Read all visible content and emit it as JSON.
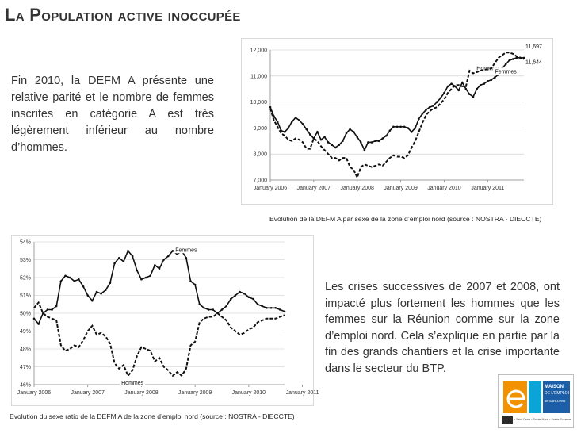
{
  "title": "La Population active inoccupée",
  "para1": "Fin 2010, la DEFM A présente une relative parité et le nombre de femmes inscrites en catégorie A est très légèrement inférieur au nombre d’hommes.",
  "para2": "Les crises successives de 2007 et 2008, ont impacté plus fortement les hommes que les femmes sur la Réunion comme sur la zone d’emploi nord. Cela s’explique en partie par la fin des grands chantiers et la crise importante dans le secteur du BTP.",
  "caption1": "Evolution de la DEFM A par sexe de la zone d’emploi nord (source : NOSTRA - DIECCTE)",
  "caption2": "Evolution du sexe ratio de la DEFM A de la zone d’emploi nord (source : NOSTRA - DIECCTE)",
  "logo": {
    "line1": "MAISON",
    "line2": "DE L'EMPLOI",
    "line3": "de Saint-Denis",
    "footer": "• Saint-Denis • Sainte-Marie • Sainte-Suzanne"
  },
  "chart_data": [
    {
      "type": "line",
      "ylim": [
        7000,
        12000
      ],
      "yticks": [
        "7,000",
        "8,000",
        "9,000",
        "10,000",
        "11,000",
        "12,000"
      ],
      "xtick_labels": [
        "January 2006",
        "January 2007",
        "January 2008",
        "January 2009",
        "January 2010",
        "January 2011"
      ],
      "x_start": "2006-01",
      "series": [
        {
          "name": "Hommes",
          "style": "solid",
          "end_label": "11,697",
          "values": [
            9800,
            9450,
            9250,
            8900,
            8850,
            9000,
            9250,
            9400,
            9300,
            9150,
            8950,
            8750,
            8600,
            8850,
            8550,
            8650,
            8450,
            8350,
            8250,
            8350,
            8500,
            8800,
            8950,
            8850,
            8650,
            8450,
            8150,
            8450,
            8450,
            8500,
            8500,
            8600,
            8700,
            8900,
            9050,
            9050,
            9050,
            9050,
            9000,
            8850,
            9000,
            9350,
            9550,
            9700,
            9800,
            9850,
            10000,
            10150,
            10350,
            10600,
            10700,
            10600,
            10450,
            10750,
            10500,
            10300,
            10200,
            10500,
            10650,
            10700,
            10800,
            10850,
            10950,
            11050,
            11300,
            11450,
            11600,
            11650,
            11700,
            11700,
            11697
          ]
        },
        {
          "name": "Femmes",
          "style": "dashed",
          "end_label": "11,644",
          "values": [
            9750,
            9300,
            9050,
            8800,
            8700,
            8550,
            8500,
            8600,
            8550,
            8450,
            8200,
            8200,
            8600,
            8500,
            8300,
            8150,
            8000,
            7850,
            7850,
            7750,
            7850,
            7850,
            7500,
            7400,
            7100,
            7500,
            7600,
            7550,
            7500,
            7550,
            7600,
            7550,
            7700,
            7850,
            7950,
            7900,
            7900,
            7850,
            7950,
            8250,
            8500,
            8850,
            9200,
            9500,
            9650,
            9750,
            9800,
            9950,
            10100,
            10350,
            10500,
            10650,
            10650,
            10600,
            10600,
            11200,
            11100,
            11150,
            11200,
            11250,
            11250,
            11300,
            11500,
            11700,
            11800,
            11900,
            11900,
            11850,
            11750,
            11700,
            11644
          ]
        }
      ]
    },
    {
      "type": "line",
      "ylim": [
        46,
        54
      ],
      "yticks": [
        "46%",
        "47%",
        "48%",
        "49%",
        "50%",
        "51%",
        "52%",
        "53%",
        "54%"
      ],
      "xtick_labels": [
        "January 2006",
        "January 2007",
        "January 2008",
        "January 2009",
        "January 2010",
        "January 2011"
      ],
      "x_start": "2006-01",
      "series": [
        {
          "name": "Femmes",
          "style": "solid",
          "values": [
            49.7,
            49.4,
            50.0,
            50.2,
            50.2,
            50.4,
            51.8,
            52.1,
            52.0,
            51.8,
            51.9,
            51.5,
            51.0,
            50.7,
            51.2,
            51.1,
            51.3,
            51.7,
            52.8,
            53.1,
            52.9,
            53.5,
            53.2,
            52.4,
            51.9,
            52.0,
            52.1,
            52.7,
            52.5,
            53.0,
            53.2,
            53.5,
            53.3,
            53.5,
            53.1,
            51.8,
            51.6,
            50.5,
            50.3,
            50.2,
            50.2,
            50.0,
            50.2,
            50.4,
            50.8,
            51.0,
            51.2,
            51.1,
            50.9,
            50.8,
            50.5,
            50.4,
            50.3,
            50.3,
            50.3,
            50.2,
            50.1
          ]
        },
        {
          "name": "Hommes",
          "style": "dashed",
          "values": [
            50.3,
            50.6,
            50.0,
            49.8,
            49.7,
            49.6,
            48.2,
            47.9,
            48.0,
            48.2,
            48.1,
            48.5,
            49.0,
            49.3,
            48.8,
            48.9,
            48.7,
            48.3,
            47.2,
            46.9,
            47.1,
            46.5,
            46.8,
            47.6,
            48.1,
            48.0,
            47.9,
            47.3,
            47.5,
            47.0,
            46.8,
            46.5,
            46.7,
            46.5,
            46.9,
            48.2,
            48.4,
            49.5,
            49.7,
            49.8,
            49.8,
            50.0,
            49.8,
            49.6,
            49.2,
            49.0,
            48.8,
            48.9,
            49.1,
            49.2,
            49.5,
            49.6,
            49.7,
            49.7,
            49.7,
            49.8,
            49.9
          ]
        }
      ]
    }
  ]
}
